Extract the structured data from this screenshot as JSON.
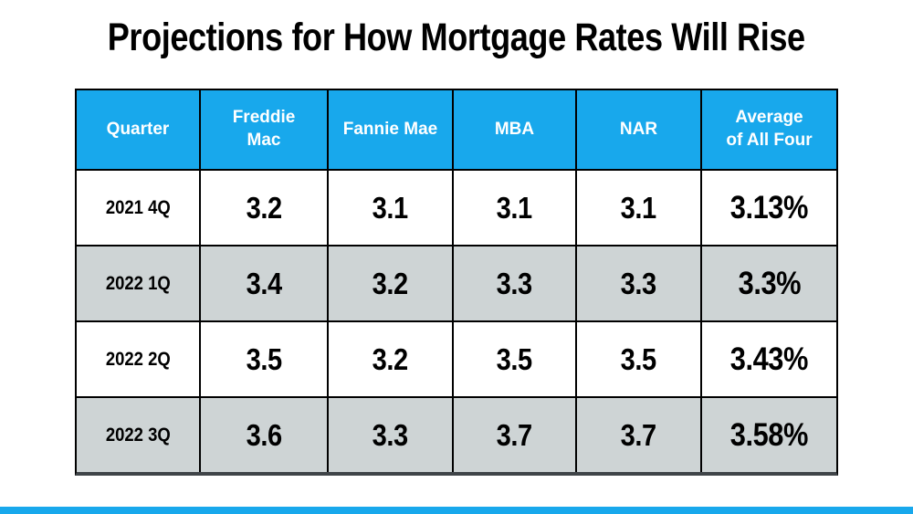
{
  "title": "Projections for How Mortgage Rates Will Rise",
  "colors": {
    "header_bg": "#18A8EC",
    "header_text": "#FFFFFF",
    "row_white_bg": "#FFFFFF",
    "row_gray_bg": "#CED4D5",
    "grid_line": "#000000",
    "table_bottom_edge": "#3F4448",
    "bottom_accent_bar": "#18A8EC",
    "body_text": "#000000"
  },
  "table": {
    "columns": [
      "Quarter",
      "Freddie\nMac",
      "Fannie Mae",
      "MBA",
      "NAR",
      "Average\nof All Four"
    ],
    "rows": [
      [
        "2021 4Q",
        "3.2",
        "3.1",
        "3.1",
        "3.1",
        "3.13%"
      ],
      [
        "2022 1Q",
        "3.4",
        "3.2",
        "3.3",
        "3.3",
        "3.3%"
      ],
      [
        "2022 2Q",
        "3.5",
        "3.2",
        "3.5",
        "3.5",
        "3.43%"
      ],
      [
        "2022 3Q",
        "3.6",
        "3.3",
        "3.7",
        "3.7",
        "3.58%"
      ]
    ]
  },
  "chart_data": {
    "type": "table",
    "title": "Projections for How Mortgage Rates Will Rise",
    "categories": [
      "2021 4Q",
      "2022 1Q",
      "2022 2Q",
      "2022 3Q"
    ],
    "series": [
      {
        "name": "Freddie Mac",
        "values": [
          3.2,
          3.4,
          3.5,
          3.6
        ]
      },
      {
        "name": "Fannie Mae",
        "values": [
          3.1,
          3.2,
          3.2,
          3.3
        ]
      },
      {
        "name": "MBA",
        "values": [
          3.1,
          3.3,
          3.5,
          3.7
        ]
      },
      {
        "name": "NAR",
        "values": [
          3.1,
          3.3,
          3.5,
          3.7
        ]
      },
      {
        "name": "Average of All Four",
        "values": [
          "3.13%",
          "3.3%",
          "3.43%",
          "3.58%"
        ]
      }
    ],
    "layout": {
      "header_row": true,
      "alternating_row_colors": [
        "#FFFFFF",
        "#CED4D5"
      ],
      "gridlines": true
    }
  }
}
